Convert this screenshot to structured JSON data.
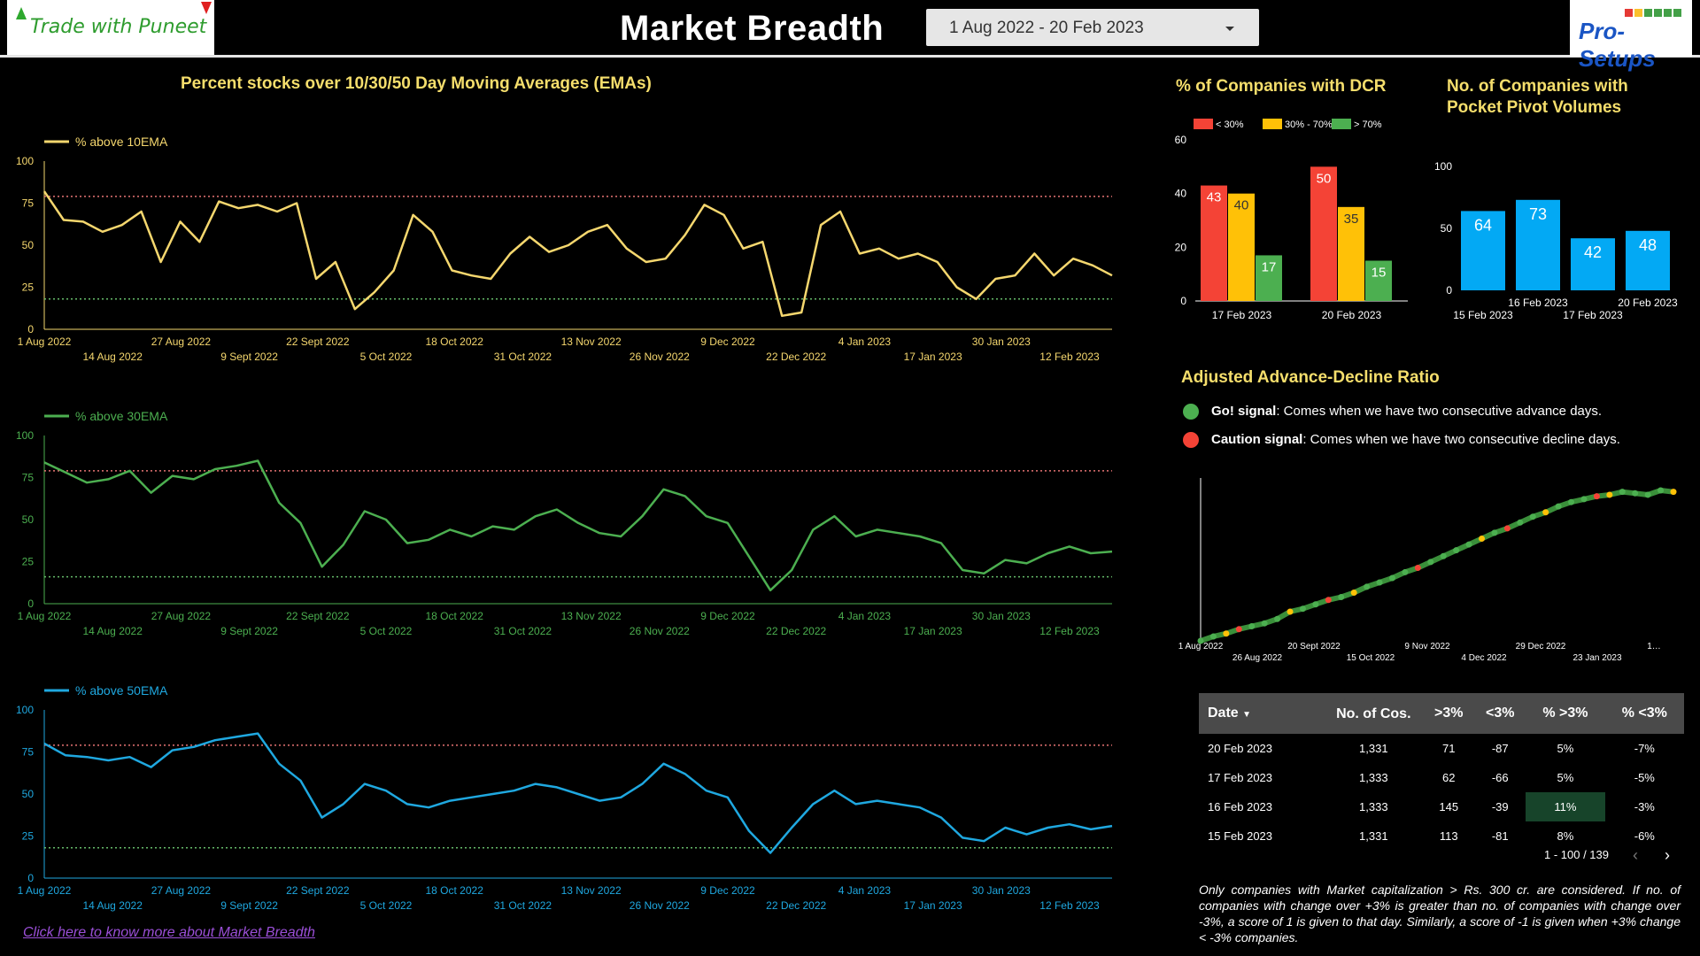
{
  "header": {
    "brand_left": "Trade with Puneet",
    "title": "Market Breadth",
    "date_range": "1 Aug 2022 - 20 Feb 2023",
    "brand_right": "Pro-Setups"
  },
  "ema_section": {
    "title": "Percent stocks over 10/30/50 Day Moving Averages (EMAs)"
  },
  "colors": {
    "ema10": "#f5d76e",
    "ema30": "#4caf50",
    "ema50": "#1fa8e0",
    "red": "#f44336",
    "yellow": "#ffc107",
    "green": "#4caf50",
    "blue": "#03a9f4",
    "title": "#f5de6c"
  },
  "chart_data": [
    {
      "type": "line",
      "series": [
        {
          "name": "% above 10EMA",
          "values": [
            82,
            65,
            64,
            58,
            62,
            70,
            40,
            64,
            52,
            76,
            72,
            74,
            70,
            75,
            30,
            40,
            12,
            22,
            35,
            68,
            58,
            35,
            32,
            30,
            45,
            55,
            46,
            50,
            58,
            62,
            48,
            40,
            42,
            56,
            74,
            68,
            48,
            52,
            8,
            10,
            62,
            70,
            45,
            48,
            42,
            45,
            40,
            25,
            18,
            30,
            32,
            45,
            32,
            42,
            38,
            32
          ]
        }
      ],
      "x_tick_labels": [
        "1 Aug 2022",
        "14 Aug 2022",
        "27 Aug 2022",
        "9 Sept 2022",
        "22 Sept 2022",
        "5 Oct 2022",
        "18 Oct 2022",
        "31 Oct 2022",
        "13 Nov 2022",
        "26 Nov 2022",
        "9 Dec 2022",
        "22 Dec 2022",
        "4 Jan 2023",
        "17 Jan 2023",
        "30 Jan 2023",
        "12 Feb 2023"
      ],
      "y_ticks": [
        0,
        25,
        50,
        75,
        100
      ],
      "ylim": [
        0,
        100
      ],
      "upper_ref": 79,
      "lower_ref": 18,
      "legend_position": "top-left"
    },
    {
      "type": "line",
      "series": [
        {
          "name": "% above 30EMA",
          "values": [
            84,
            78,
            72,
            74,
            79,
            66,
            76,
            74,
            80,
            82,
            85,
            60,
            48,
            22,
            35,
            55,
            50,
            36,
            38,
            44,
            40,
            46,
            44,
            52,
            56,
            48,
            42,
            40,
            52,
            68,
            64,
            52,
            48,
            28,
            8,
            20,
            44,
            52,
            40,
            44,
            42,
            40,
            36,
            20,
            18,
            26,
            24,
            30,
            34,
            30,
            31
          ]
        }
      ],
      "x_tick_labels": [
        "1 Aug 2022",
        "14 Aug 2022",
        "27 Aug 2022",
        "9 Sept 2022",
        "22 Sept 2022",
        "5 Oct 2022",
        "18 Oct 2022",
        "31 Oct 2022",
        "13 Nov 2022",
        "26 Nov 2022",
        "9 Dec 2022",
        "22 Dec 2022",
        "4 Jan 2023",
        "17 Jan 2023",
        "30 Jan 2023",
        "12 Feb 2023"
      ],
      "y_ticks": [
        0,
        25,
        50,
        75,
        100
      ],
      "ylim": [
        0,
        100
      ],
      "upper_ref": 79,
      "lower_ref": 16,
      "legend_position": "top-left"
    },
    {
      "type": "line",
      "series": [
        {
          "name": "% above 50EMA",
          "values": [
            80,
            73,
            72,
            70,
            72,
            66,
            76,
            78,
            82,
            84,
            86,
            68,
            58,
            36,
            44,
            56,
            52,
            44,
            42,
            46,
            48,
            50,
            52,
            56,
            54,
            50,
            46,
            48,
            56,
            68,
            62,
            52,
            48,
            28,
            15,
            30,
            44,
            52,
            44,
            46,
            44,
            42,
            36,
            24,
            22,
            30,
            26,
            30,
            32,
            29,
            31
          ]
        }
      ],
      "x_tick_labels": [
        "1 Aug 2022",
        "14 Aug 2022",
        "27 Aug 2022",
        "9 Sept 2022",
        "22 Sept 2022",
        "5 Oct 2022",
        "18 Oct 2022",
        "31 Oct 2022",
        "13 Nov 2022",
        "26 Nov 2022",
        "9 Dec 2022",
        "22 Dec 2022",
        "4 Jan 2023",
        "17 Jan 2023",
        "30 Jan 2023",
        "12 Feb 2023"
      ],
      "y_ticks": [
        0,
        25,
        50,
        75,
        100
      ],
      "ylim": [
        0,
        100
      ],
      "upper_ref": 79,
      "lower_ref": 18,
      "legend_position": "top-left"
    },
    {
      "type": "bar",
      "title": "% of Companies with DCR",
      "categories": [
        "17 Feb 2023",
        "20 Feb 2023"
      ],
      "series": [
        {
          "name": "< 30%",
          "values": [
            43,
            50
          ]
        },
        {
          "name": "30% - 70%",
          "values": [
            40,
            35
          ]
        },
        {
          "name": "> 70%",
          "values": [
            17,
            15
          ]
        }
      ],
      "y_ticks": [
        0,
        20,
        40,
        60
      ],
      "ylim": [
        0,
        60
      ],
      "legend_position": "top"
    },
    {
      "type": "bar",
      "title": "No. of Companies with Pocket Pivot Volumes",
      "categories": [
        "15 Feb 2023",
        "16 Feb 2023",
        "17 Feb 2023",
        "20 Feb 2023"
      ],
      "values": [
        64,
        73,
        42,
        48
      ],
      "y_ticks": [
        0,
        50,
        100
      ],
      "ylim": [
        0,
        100
      ]
    },
    {
      "type": "line",
      "title": "Adjusted Advance-Decline Ratio",
      "values": [
        0,
        3,
        5,
        8,
        10,
        12,
        15,
        20,
        22,
        25,
        28,
        30,
        33,
        37,
        40,
        43,
        47,
        50,
        54,
        58,
        62,
        66,
        70,
        74,
        77,
        81,
        85,
        88,
        92,
        95,
        97,
        99,
        100,
        102,
        101,
        100,
        103,
        102
      ],
      "x_tick_labels": [
        "1 Aug 2022",
        "26 Aug 2022",
        "20 Sept 2022",
        "15 Oct 2022",
        "9 Nov 2022",
        "4 Dec 2022",
        "29 Dec 2022",
        "23 Jan 2023",
        "1…"
      ],
      "signal_colors": [
        "#4caf50",
        "#f44336",
        "#ffc107"
      ]
    }
  ],
  "ad_section": {
    "go_label": "Go! signal",
    "go_desc": ": Comes when we have two consecutive advance days.",
    "caution_label": "Caution signal",
    "caution_desc": ": Comes when we have two consecutive decline days."
  },
  "table": {
    "headers": [
      "Date",
      "No. of Cos.",
      ">3%",
      "<3%",
      "% >3%",
      "% <3%"
    ],
    "rows": [
      [
        "20 Feb 2023",
        "1,331",
        "71",
        "-87",
        "5%",
        "-7%"
      ],
      [
        "17 Feb 2023",
        "1,333",
        "62",
        "-66",
        "5%",
        "-5%"
      ],
      [
        "16 Feb 2023",
        "1,333",
        "145",
        "-39",
        "11%",
        "-3%"
      ],
      [
        "15 Feb 2023",
        "1,331",
        "113",
        "-81",
        "8%",
        "-6%"
      ]
    ],
    "pager": "1 - 100 / 139"
  },
  "note": "Only companies with Market capitalization > Rs. 300 cr. are considered. If no. of companies with change over +3% is greater than no. of companies with change over -3%, a score of 1 is given to that day. Similarly, a score of -1 is given when +3% change < -3% companies.",
  "link": "Click here to know more about Market Breadth"
}
